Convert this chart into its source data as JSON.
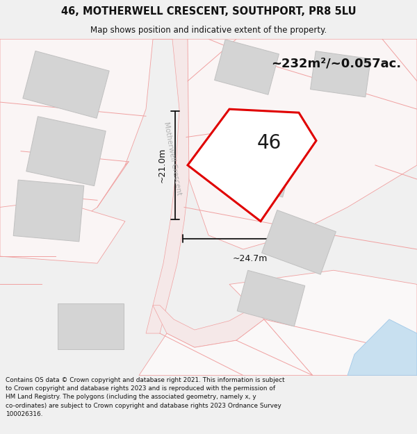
{
  "title": "46, MOTHERWELL CRESCENT, SOUTHPORT, PR8 5LU",
  "subtitle": "Map shows position and indicative extent of the property.",
  "footer": "Contains OS data © Crown copyright and database right 2021. This information is subject\nto Crown copyright and database rights 2023 and is reproduced with the permission of\nHM Land Registry. The polygons (including the associated geometry, namely x, y\nco-ordinates) are subject to Crown copyright and database rights 2023 Ordnance Survey\n100026316.",
  "area_text": "~232m²/~0.057ac.",
  "label_46": "46",
  "dim_width": "~24.7m",
  "dim_height": "~21.0m",
  "street_label": "Motherwell Crescent",
  "bg_color": "#f0f0f0",
  "map_bg": "#ffffff",
  "building_color": "#d4d4d4",
  "building_outline": "#c0c0c0",
  "plot_outline_color": "#e00000",
  "plot_fill_color": "#ffffff",
  "dim_line_color": "#111111",
  "title_color": "#111111",
  "footer_bg": "#ffffff",
  "boundary_color": "#f0a0a0",
  "road_fill_color": "#f5e8e8",
  "water_color": "#c8e0f0",
  "street_text_color": "#b0b0b0"
}
